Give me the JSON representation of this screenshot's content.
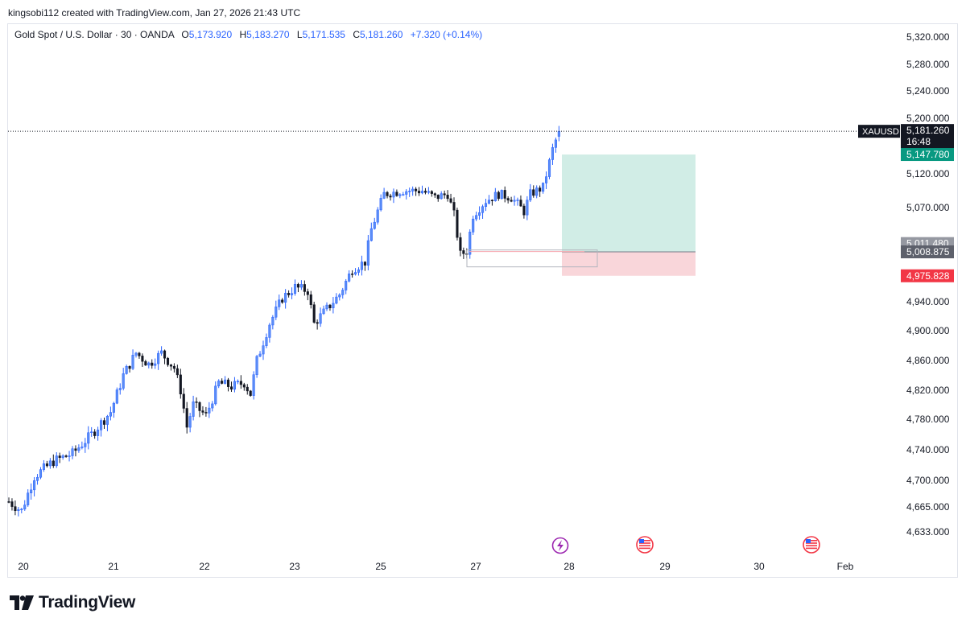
{
  "header": {
    "credit": "kingsobi112 created with TradingView.com, Jan 27, 2026 21:43 UTC"
  },
  "legend": {
    "symbol_desc": "Gold Spot / U.S. Dollar · 30 · OANDA",
    "open_label": "O",
    "open": "5,173.920",
    "high_label": "H",
    "high": "5,183.270",
    "low_label": "L",
    "low": "5,171.535",
    "close_label": "C",
    "close": "5,181.260",
    "change": "+7.320 (+0.14%)"
  },
  "brand": {
    "name": "TradingView"
  },
  "colors": {
    "up": "#2962ff",
    "down": "#131722",
    "tp_zone": "#d1ede6",
    "sl_zone": "#f9d6da",
    "tp_badge": "#089981",
    "sl_badge": "#f23645",
    "entry_badge": "#5d606b",
    "ref_badge": "#9598a1"
  },
  "chart_data": {
    "type": "candlestick",
    "symbol": "XAUUSD",
    "interval": "30",
    "y_ticks": [
      5320,
      5280,
      5240,
      5200,
      5120,
      5070,
      4940,
      4900,
      4860,
      4820,
      4780,
      4740,
      4700,
      4665,
      4633
    ],
    "y_tick_labels": [
      "5,320.000",
      "5,280.000",
      "5,240.000",
      "5,200.000",
      "5,120.000",
      "5,070.000",
      "4,940.000",
      "4,900.000",
      "4,860.000",
      "4,820.000",
      "4,780.000",
      "4,740.000",
      "4,700.000",
      "4,665.000",
      "4,633.000"
    ],
    "x_ticks": [
      "20",
      "21",
      "22",
      "23",
      "25",
      "27",
      "28",
      "29",
      "30",
      "Feb"
    ],
    "ylim": [
      4617,
      5342
    ],
    "approx_close_path": [
      [
        0,
        4672
      ],
      [
        4,
        4660
      ],
      [
        8,
        4705
      ],
      [
        14,
        4725
      ],
      [
        20,
        4735
      ],
      [
        26,
        4760
      ],
      [
        32,
        4790
      ],
      [
        36,
        4840
      ],
      [
        40,
        4870
      ],
      [
        44,
        4855
      ],
      [
        48,
        4870
      ],
      [
        52,
        4850
      ],
      [
        54,
        4820
      ],
      [
        56,
        4770
      ],
      [
        58,
        4800
      ],
      [
        62,
        4785
      ],
      [
        66,
        4830
      ],
      [
        70,
        4825
      ],
      [
        74,
        4830
      ],
      [
        76,
        4815
      ],
      [
        78,
        4860
      ],
      [
        82,
        4910
      ],
      [
        86,
        4945
      ],
      [
        90,
        4960
      ],
      [
        94,
        4955
      ],
      [
        96,
        4910
      ],
      [
        100,
        4930
      ],
      [
        104,
        4950
      ],
      [
        108,
        4985
      ],
      [
        112,
        4995
      ],
      [
        114,
        5040
      ],
      [
        118,
        5090
      ],
      [
        124,
        5095
      ],
      [
        130,
        5095
      ],
      [
        134,
        5085
      ],
      [
        138,
        5090
      ],
      [
        140,
        5060
      ],
      [
        142,
        5005
      ],
      [
        144,
        5010
      ],
      [
        146,
        5060
      ],
      [
        150,
        5080
      ],
      [
        154,
        5090
      ],
      [
        158,
        5085
      ],
      [
        162,
        5065
      ],
      [
        164,
        5090
      ],
      [
        168,
        5100
      ],
      [
        171,
        5155
      ],
      [
        173,
        5181
      ]
    ],
    "last_price": {
      "label": "XAUUSD",
      "value": "5,181.260",
      "countdown": "16:48"
    },
    "position": {
      "take_profit": "5,147.780",
      "reference": "5,011.480",
      "entry": "5,008.875",
      "stop_loss": "4,975.828"
    },
    "grid": false
  }
}
